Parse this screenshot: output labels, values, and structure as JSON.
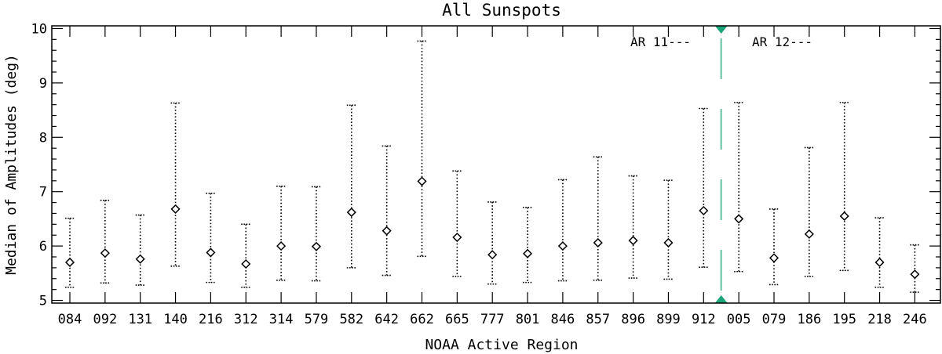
{
  "chart_data": {
    "type": "scatter",
    "title": "All Sunspots",
    "xlabel": "NOAA Active Region",
    "ylabel": "Median of Amplitudes (deg)",
    "ylim": [
      4.95,
      10.05
    ],
    "y_ticks": [
      "5",
      "6",
      "7",
      "8",
      "9",
      "10"
    ],
    "categories": [
      "084",
      "092",
      "131",
      "140",
      "216",
      "312",
      "314",
      "579",
      "582",
      "642",
      "662",
      "665",
      "777",
      "801",
      "846",
      "857",
      "896",
      "899",
      "912",
      "005",
      "079",
      "186",
      "195",
      "218",
      "246"
    ],
    "values": [
      5.7,
      5.87,
      5.76,
      6.68,
      5.88,
      5.67,
      6.0,
      5.99,
      6.62,
      6.28,
      7.19,
      6.16,
      5.84,
      5.86,
      6.0,
      6.06,
      6.1,
      6.06,
      6.65,
      6.5,
      5.78,
      6.22,
      6.55,
      5.7,
      5.48
    ],
    "error_low": [
      5.24,
      5.32,
      5.28,
      5.63,
      5.33,
      5.24,
      5.37,
      5.36,
      5.6,
      5.46,
      5.81,
      5.44,
      5.3,
      5.33,
      5.36,
      5.37,
      5.41,
      5.39,
      5.61,
      5.53,
      5.29,
      5.44,
      5.55,
      5.24,
      5.15
    ],
    "error_high": [
      6.51,
      6.84,
      6.57,
      8.63,
      6.97,
      6.4,
      7.1,
      7.09,
      8.59,
      7.84,
      9.77,
      7.38,
      6.81,
      6.71,
      7.22,
      7.64,
      7.29,
      7.21,
      8.53,
      8.64,
      6.68,
      7.81,
      8.64,
      6.52,
      6.02
    ],
    "divider": {
      "between": [
        "912",
        "005"
      ],
      "color": "#1aa57a",
      "left_label": "AR 11---",
      "right_label": "AR 12---"
    }
  }
}
